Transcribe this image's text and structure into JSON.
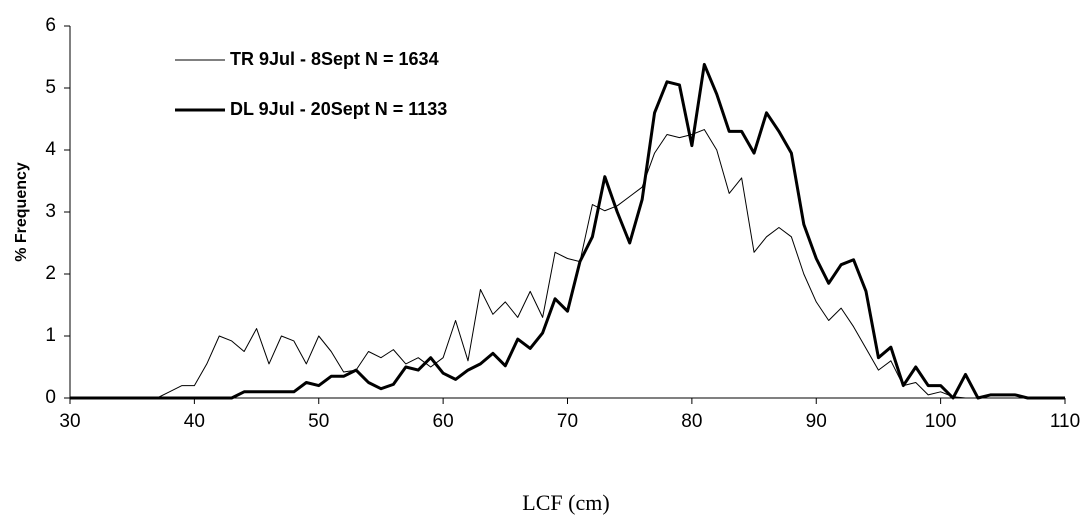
{
  "chart_data": {
    "type": "line",
    "xlabel": "LCF (cm)",
    "ylabel": "% Frequency",
    "x": [
      30,
      31,
      32,
      33,
      34,
      35,
      36,
      37,
      38,
      39,
      40,
      41,
      42,
      43,
      44,
      45,
      46,
      47,
      48,
      49,
      50,
      51,
      52,
      53,
      54,
      55,
      56,
      57,
      58,
      59,
      60,
      61,
      62,
      63,
      64,
      65,
      66,
      67,
      68,
      69,
      70,
      71,
      72,
      73,
      74,
      75,
      76,
      77,
      78,
      79,
      80,
      81,
      82,
      83,
      84,
      85,
      86,
      87,
      88,
      89,
      90,
      91,
      92,
      93,
      94,
      95,
      96,
      97,
      98,
      99,
      100,
      101,
      102,
      103,
      104,
      105,
      106,
      107,
      108,
      109,
      110
    ],
    "series": [
      {
        "name": "TR 9Jul - 8Sept N = 1634",
        "color": "#000000",
        "width": 1,
        "values": [
          0,
          0,
          0,
          0,
          0,
          0,
          0,
          0,
          0.1,
          0.2,
          0.2,
          0.55,
          1.0,
          0.92,
          0.75,
          1.12,
          0.55,
          1.0,
          0.92,
          0.55,
          1.0,
          0.75,
          0.42,
          0.45,
          0.75,
          0.65,
          0.78,
          0.55,
          0.65,
          0.5,
          0.65,
          1.25,
          0.6,
          1.75,
          1.35,
          1.55,
          1.3,
          1.72,
          1.3,
          2.35,
          2.25,
          2.2,
          3.12,
          3.02,
          3.1,
          3.25,
          3.4,
          3.95,
          4.25,
          4.2,
          4.25,
          4.33,
          4.0,
          3.3,
          3.55,
          2.35,
          2.6,
          2.75,
          2.6,
          2.0,
          1.55,
          1.25,
          1.45,
          1.15,
          0.8,
          0.45,
          0.6,
          0.2,
          0.25,
          0.05,
          0.1,
          0.02,
          0,
          0,
          0,
          0,
          0,
          0,
          0,
          0,
          0
        ]
      },
      {
        "name": "DL 9Jul - 20Sept N = 1133",
        "color": "#000000",
        "width": 3,
        "values": [
          0,
          0,
          0,
          0,
          0,
          0,
          0,
          0,
          0,
          0,
          0,
          0,
          0,
          0,
          0.1,
          0.1,
          0.1,
          0.1,
          0.1,
          0.25,
          0.2,
          0.35,
          0.35,
          0.45,
          0.25,
          0.15,
          0.22,
          0.5,
          0.45,
          0.65,
          0.4,
          0.3,
          0.45,
          0.55,
          0.72,
          0.52,
          0.95,
          0.8,
          1.05,
          1.6,
          1.4,
          2.2,
          2.6,
          3.57,
          3.0,
          2.5,
          3.2,
          4.6,
          5.1,
          5.05,
          4.07,
          5.38,
          4.9,
          4.3,
          4.3,
          3.95,
          4.6,
          4.3,
          3.95,
          2.8,
          2.25,
          1.85,
          2.15,
          2.23,
          1.72,
          0.65,
          0.82,
          0.2,
          0.5,
          0.2,
          0.2,
          0,
          0.38,
          0,
          0.05,
          0.05,
          0.05,
          0,
          0,
          0,
          0
        ]
      }
    ],
    "xlim": [
      30,
      110
    ],
    "xticks": [
      30,
      40,
      50,
      60,
      70,
      80,
      90,
      100,
      110
    ],
    "ylim": [
      0,
      6
    ],
    "yticks": [
      0,
      1,
      2,
      3,
      4,
      5,
      6
    ],
    "legend": "upper-left",
    "grid": false
  }
}
